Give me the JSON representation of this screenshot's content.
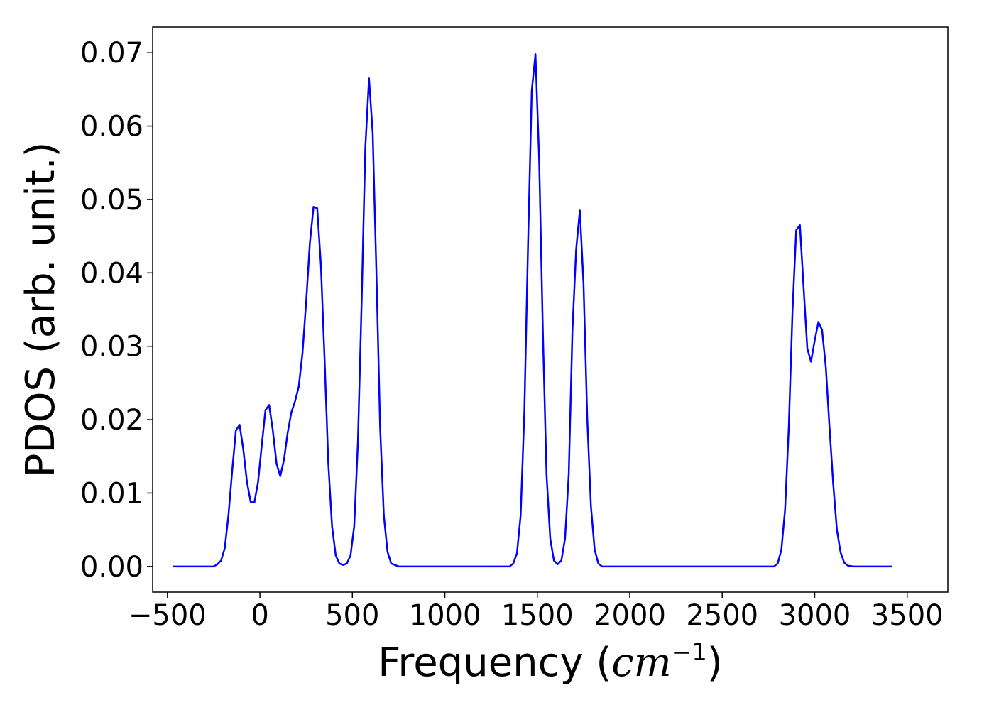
{
  "chart_data": {
    "type": "line",
    "xlabel_prefix": "Frequency (",
    "xlabel_unit": "cm",
    "xlabel_exp": "−1",
    "xlabel_suffix": ")",
    "ylabel": "PDOS (arb. unit.)",
    "xlim": [
      -580,
      3720
    ],
    "ylim": [
      -0.0035,
      0.0735
    ],
    "xticks": [
      -500,
      0,
      500,
      1000,
      1500,
      2000,
      2500,
      3000,
      3500
    ],
    "xtick_labels": [
      "−500",
      "0",
      "500",
      "1000",
      "1500",
      "2000",
      "2500",
      "3000",
      "3500"
    ],
    "yticks": [
      0.0,
      0.01,
      0.02,
      0.03,
      0.04,
      0.05,
      0.06,
      0.07
    ],
    "ytick_labels": [
      "0.00",
      "0.01",
      "0.02",
      "0.03",
      "0.04",
      "0.05",
      "0.06",
      "0.07"
    ],
    "grid": false,
    "series": [
      {
        "color": "#0000ff",
        "x": [
          -470,
          -250,
          -230,
          -210,
          -190,
          -170,
          -150,
          -130,
          -110,
          -90,
          -70,
          -50,
          -30,
          -10,
          10,
          30,
          50,
          70,
          90,
          110,
          130,
          150,
          170,
          190,
          210,
          230,
          250,
          270,
          290,
          310,
          330,
          350,
          370,
          390,
          410,
          430,
          450,
          470,
          490,
          510,
          530,
          550,
          570,
          590,
          610,
          630,
          650,
          670,
          690,
          710,
          750,
          1000,
          1350,
          1370,
          1390,
          1410,
          1430,
          1450,
          1470,
          1490,
          1510,
          1530,
          1550,
          1570,
          1590,
          1610,
          1630,
          1650,
          1670,
          1690,
          1710,
          1730,
          1750,
          1770,
          1790,
          1810,
          1830,
          1850,
          1880,
          2500,
          2780,
          2800,
          2820,
          2840,
          2860,
          2880,
          2900,
          2920,
          2940,
          2960,
          2980,
          3000,
          3020,
          3040,
          3060,
          3080,
          3100,
          3120,
          3140,
          3160,
          3180,
          3210,
          3420
        ],
        "y": [
          0.0,
          0.0,
          0.0003,
          0.0008,
          0.0025,
          0.007,
          0.013,
          0.0185,
          0.0193,
          0.016,
          0.0115,
          0.0088,
          0.0087,
          0.0115,
          0.0165,
          0.0213,
          0.022,
          0.0185,
          0.014,
          0.0123,
          0.0145,
          0.0182,
          0.021,
          0.0225,
          0.0245,
          0.029,
          0.036,
          0.044,
          0.049,
          0.0488,
          0.041,
          0.028,
          0.014,
          0.0055,
          0.0015,
          0.0004,
          0.0002,
          0.0004,
          0.0015,
          0.0055,
          0.017,
          0.036,
          0.057,
          0.0665,
          0.059,
          0.04,
          0.019,
          0.007,
          0.002,
          0.0004,
          0.0,
          0.0,
          0.0,
          0.0004,
          0.0018,
          0.007,
          0.021,
          0.044,
          0.0648,
          0.0698,
          0.0555,
          0.032,
          0.0125,
          0.0038,
          0.0008,
          0.0003,
          0.0008,
          0.0038,
          0.0125,
          0.0322,
          0.0432,
          0.0485,
          0.0385,
          0.0202,
          0.0082,
          0.0023,
          0.0004,
          0.0,
          0.0,
          0.0,
          0.0,
          0.0004,
          0.0023,
          0.0078,
          0.019,
          0.0348,
          0.0458,
          0.0465,
          0.038,
          0.0297,
          0.0279,
          0.0308,
          0.0333,
          0.0322,
          0.0272,
          0.019,
          0.0113,
          0.005,
          0.0019,
          0.0005,
          0.0001,
          0.0,
          0.0
        ]
      }
    ]
  }
}
